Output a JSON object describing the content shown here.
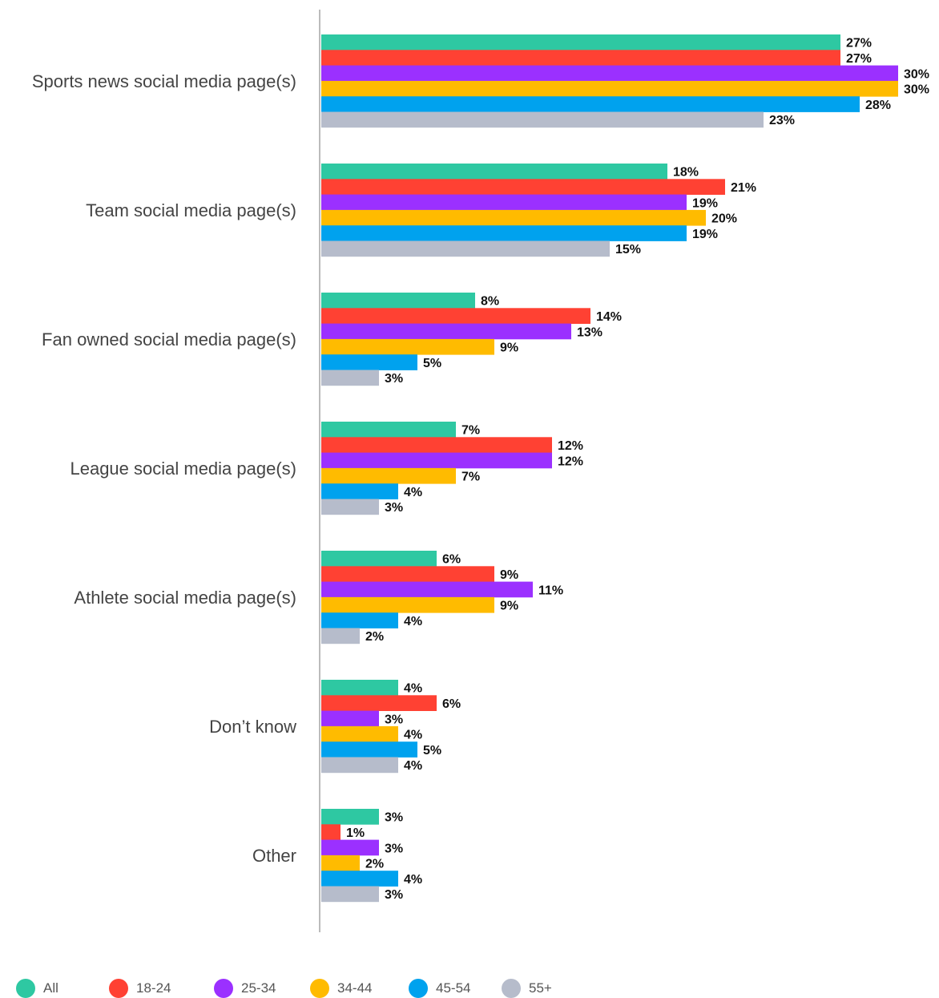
{
  "chart_data": {
    "type": "bar",
    "orientation": "horizontal",
    "categories": [
      "Sports news social media page(s)",
      "Team social media page(s)",
      "Fan owned social media page(s)",
      "League social media page(s)",
      "Athlete social media page(s)",
      "Don’t know",
      "Other"
    ],
    "series": [
      {
        "name": "All",
        "color": "#2ec8a2",
        "values": [
          27,
          18,
          8,
          7,
          6,
          4,
          3
        ],
        "labels": [
          "27%",
          "18%",
          "8%",
          "7%",
          "6%",
          "4%",
          "3%"
        ]
      },
      {
        "name": "18-24",
        "color": "#ff4133",
        "values": [
          27,
          21,
          14,
          12,
          9,
          6,
          1
        ],
        "labels": [
          "27%",
          "21%",
          "14%",
          "12%",
          "9%",
          "6%",
          "1%"
        ]
      },
      {
        "name": "25-34",
        "color": "#9b30ff",
        "values": [
          30,
          19,
          13,
          12,
          11,
          3,
          3
        ],
        "labels": [
          "30%",
          "19%",
          "13%",
          "12%",
          "11%",
          "3%",
          "3%"
        ]
      },
      {
        "name": "34-44",
        "color": "#ffbb00",
        "values": [
          30,
          20,
          9,
          7,
          9,
          4,
          2
        ],
        "labels": [
          "30%",
          "20%",
          "9%",
          "7%",
          "9%",
          "4%",
          "2%"
        ]
      },
      {
        "name": "45-54",
        "color": "#00a2ee",
        "values": [
          28,
          19,
          5,
          4,
          4,
          5,
          4
        ],
        "labels": [
          "28%",
          "19%",
          "5%",
          "4%",
          "4%",
          "5%",
          "4%"
        ]
      },
      {
        "name": "55+",
        "color": "#b6bccb",
        "values": [
          23,
          15,
          3,
          3,
          2,
          4,
          3
        ],
        "labels": [
          "23%",
          "15%",
          "3%",
          "3%",
          "2%",
          "4%",
          "3%"
        ]
      }
    ],
    "value_unit": "%",
    "legend_position": "bottom-left",
    "grid": false
  }
}
